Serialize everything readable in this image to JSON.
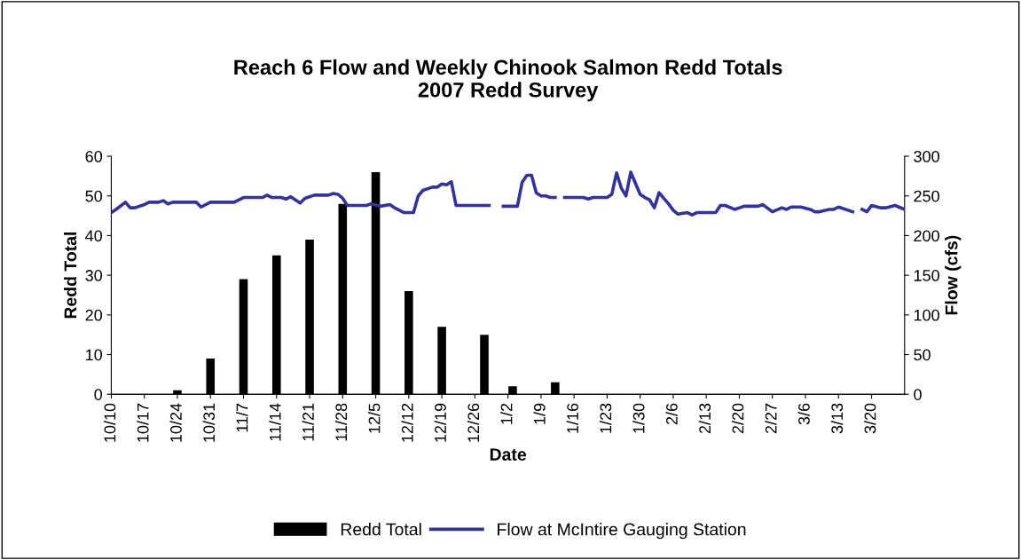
{
  "chart_data": {
    "type": "bar",
    "title": "Reach 6 Flow and Weekly Chinook Salmon Redd Totals\n2007 Redd Survey",
    "xlabel": "Date",
    "ylabel": "Redd Total",
    "y2label": "Flow (cfs)",
    "series": [
      {
        "name": "Redd Total",
        "color": "#000000",
        "x": [
          "2006-10-24",
          "2006-10-31",
          "2006-11-07",
          "2006-11-14",
          "2006-11-21",
          "2006-11-28",
          "2006-12-05",
          "2006-12-12",
          "2006-12-19",
          "2006-12-28",
          "2007-01-03",
          "2007-01-12"
        ],
        "values": [
          1,
          9,
          29,
          35,
          39,
          48,
          56,
          26,
          17,
          15,
          2,
          3
        ]
      },
      {
        "name": "Flow at McIntire Gauging Station",
        "type": "line",
        "axis": "y2",
        "color": "#333399",
        "x": [
          "2006-10-10",
          "2006-10-11",
          "2006-10-13",
          "2006-10-14",
          "2006-10-15",
          "2006-10-17",
          "2006-10-18",
          "2006-10-20",
          "2006-10-21",
          "2006-10-22",
          "2006-10-23",
          "2006-10-28",
          "2006-10-29",
          "2006-10-31",
          "2006-11-05",
          "2006-11-07",
          "2006-11-11",
          "2006-11-12",
          "2006-11-13",
          "2006-11-15",
          "2006-11-16",
          "2006-11-17",
          "2006-11-19",
          "2006-11-20",
          "2006-11-22",
          "2006-11-25",
          "2006-11-26",
          "2006-11-27",
          "2006-11-28",
          "2006-11-29",
          "2006-12-03",
          "2006-12-04",
          "2006-12-06",
          "2006-12-08",
          "2006-12-09",
          "2006-12-11",
          "2006-12-13",
          "2006-12-14",
          "2006-12-15",
          "2006-12-17",
          "2006-12-18",
          "2006-12-19",
          "2006-12-20",
          "2006-12-21",
          "2006-12-22",
          "2006-12-29",
          "2006-12-30",
          "2007-01-01",
          "2007-01-04",
          "2007-01-05",
          "2007-01-06",
          "2007-01-07",
          "2007-01-08",
          "2007-01-09",
          "2007-01-10",
          "2007-01-11",
          "2007-01-12",
          "2007-01-13",
          "2007-01-14",
          "2007-01-18",
          "2007-01-19",
          "2007-01-20",
          "2007-01-23",
          "2007-01-24",
          "2007-01-25",
          "2007-01-26",
          "2007-01-27",
          "2007-01-28",
          "2007-01-30",
          "2007-01-31",
          "2007-02-01",
          "2007-02-02",
          "2007-02-03",
          "2007-02-05",
          "2007-02-06",
          "2007-02-07",
          "2007-02-09",
          "2007-02-10",
          "2007-02-11",
          "2007-02-15",
          "2007-02-16",
          "2007-02-17",
          "2007-02-19",
          "2007-02-21",
          "2007-02-24",
          "2007-02-25",
          "2007-02-27",
          "2007-03-01",
          "2007-03-02",
          "2007-03-03",
          "2007-03-05",
          "2007-03-07",
          "2007-03-08",
          "2007-03-09",
          "2007-03-11",
          "2007-03-12",
          "2007-03-13",
          "2007-03-16",
          "2007-03-17",
          "2007-03-18",
          "2007-03-19",
          "2007-03-20",
          "2007-03-22",
          "2007-03-23",
          "2007-03-25",
          "2007-03-27"
        ],
        "values": [
          229,
          233,
          242,
          235,
          235,
          239,
          242,
          242,
          244,
          240,
          242,
          242,
          236,
          242,
          242,
          248,
          248,
          251,
          248,
          248,
          246,
          249,
          241,
          247,
          251,
          251,
          253,
          252,
          247,
          238,
          238,
          240,
          237,
          239,
          235,
          229,
          229,
          250,
          257,
          261,
          261,
          265,
          264,
          268,
          238,
          238,
          null,
          237,
          237,
          267,
          276,
          276,
          254,
          250,
          250,
          248,
          248,
          null,
          248,
          248,
          246,
          248,
          248,
          252,
          279,
          260,
          250,
          280,
          252,
          248,
          245,
          235,
          254,
          240,
          232,
          227,
          229,
          226,
          229,
          229,
          238,
          238,
          233,
          237,
          237,
          239,
          230,
          235,
          233,
          236,
          236,
          233,
          230,
          230,
          233,
          233,
          236,
          230,
          null,
          233,
          230,
          238,
          235,
          235,
          238,
          233
        ]
      }
    ],
    "xlim": [
      "2006-10-10",
      "2007-03-27"
    ],
    "xticks": [
      {
        "value": "2006-10-10",
        "label": "10/10"
      },
      {
        "value": "2006-10-17",
        "label": "10/17"
      },
      {
        "value": "2006-10-24",
        "label": "10/24"
      },
      {
        "value": "2006-10-31",
        "label": "10/31"
      },
      {
        "value": "2006-11-07",
        "label": "11/7"
      },
      {
        "value": "2006-11-14",
        "label": "11/14"
      },
      {
        "value": "2006-11-21",
        "label": "11/21"
      },
      {
        "value": "2006-11-28",
        "label": "11/28"
      },
      {
        "value": "2006-12-05",
        "label": "12/5"
      },
      {
        "value": "2006-12-12",
        "label": "12/12"
      },
      {
        "value": "2006-12-19",
        "label": "12/19"
      },
      {
        "value": "2006-12-26",
        "label": "12/26"
      },
      {
        "value": "2007-01-02",
        "label": "1/2"
      },
      {
        "value": "2007-01-09",
        "label": "1/9"
      },
      {
        "value": "2007-01-16",
        "label": "1/16"
      },
      {
        "value": "2007-01-23",
        "label": "1/23"
      },
      {
        "value": "2007-01-30",
        "label": "1/30"
      },
      {
        "value": "2007-02-06",
        "label": "2/6"
      },
      {
        "value": "2007-02-13",
        "label": "2/13"
      },
      {
        "value": "2007-02-20",
        "label": "2/20"
      },
      {
        "value": "2007-02-27",
        "label": "2/27"
      },
      {
        "value": "2007-03-06",
        "label": "3/6"
      },
      {
        "value": "2007-03-13",
        "label": "3/13"
      },
      {
        "value": "2007-03-20",
        "label": "3/20"
      }
    ],
    "ylim": [
      0,
      60
    ],
    "yticks": [
      0,
      10,
      20,
      30,
      40,
      50,
      60
    ],
    "y2lim": [
      0,
      300
    ],
    "y2ticks": [
      0,
      50,
      100,
      150,
      200,
      250,
      300
    ],
    "legend": "bottom"
  }
}
